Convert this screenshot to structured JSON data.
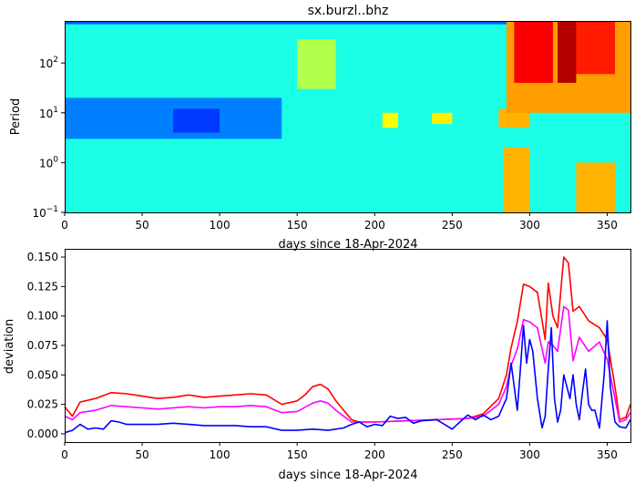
{
  "chart_data": [
    {
      "type": "heatmap",
      "title": "sx.burzl..bhz",
      "xlabel": "days since 18-Apr-2024",
      "ylabel": "Period",
      "xlim": [
        0,
        365
      ],
      "ylim": [
        0.1,
        700
      ],
      "yscale": "log",
      "x_ticks": [
        0,
        50,
        100,
        150,
        200,
        250,
        300,
        350
      ],
      "y_ticks": [
        {
          "value": 0.1,
          "base": "10",
          "exp": "−1"
        },
        {
          "value": 1,
          "base": "10",
          "exp": "0"
        },
        {
          "value": 10,
          "base": "10",
          "exp": "1"
        },
        {
          "value": 100,
          "base": "10",
          "exp": "2"
        }
      ],
      "colormap": "jet",
      "regions": [
        {
          "x": [
            0,
            365
          ],
          "period": [
            0.1,
            700
          ],
          "level": 0.4
        },
        {
          "x": [
            0,
            140
          ],
          "period": [
            3,
            20
          ],
          "level": 0.25
        },
        {
          "x": [
            70,
            100
          ],
          "period": [
            4,
            12
          ],
          "level": 0.18
        },
        {
          "x": [
            0,
            300
          ],
          "period": [
            600,
            700
          ],
          "level": 0.22
        },
        {
          "x": [
            150,
            175
          ],
          "period": [
            30,
            300
          ],
          "level": 0.55
        },
        {
          "x": [
            205,
            215
          ],
          "period": [
            5,
            10
          ],
          "level": 0.62
        },
        {
          "x": [
            237,
            250
          ],
          "period": [
            6,
            10
          ],
          "level": 0.64
        },
        {
          "x": [
            280,
            300
          ],
          "period": [
            5,
            12
          ],
          "level": 0.7
        },
        {
          "x": [
            285,
            365
          ],
          "period": [
            10,
            700
          ],
          "level": 0.72
        },
        {
          "x": [
            290,
            315
          ],
          "period": [
            40,
            700
          ],
          "level": 0.88
        },
        {
          "x": [
            318,
            330
          ],
          "period": [
            40,
            700
          ],
          "level": 0.95
        },
        {
          "x": [
            330,
            355
          ],
          "period": [
            60,
            700
          ],
          "level": 0.85
        },
        {
          "x": [
            283,
            300
          ],
          "period": [
            0.1,
            2
          ],
          "level": 0.7
        },
        {
          "x": [
            330,
            355
          ],
          "period": [
            0.1,
            1
          ],
          "level": 0.7
        }
      ]
    },
    {
      "type": "line",
      "xlabel": "days since 18-Apr-2024",
      "ylabel": "deviation",
      "xlim": [
        0,
        365
      ],
      "ylim": [
        -0.007,
        0.157
      ],
      "x_ticks": [
        0,
        50,
        100,
        150,
        200,
        250,
        300,
        350
      ],
      "y_ticks": [
        "0.000",
        "0.025",
        "0.050",
        "0.075",
        "0.100",
        "0.125",
        "0.150"
      ],
      "series": [
        {
          "color": "#ff0000",
          "x": [
            0,
            5,
            10,
            20,
            30,
            40,
            50,
            60,
            70,
            80,
            90,
            100,
            110,
            120,
            130,
            140,
            150,
            155,
            160,
            165,
            170,
            175,
            180,
            185,
            190,
            200,
            220,
            240,
            260,
            270,
            280,
            285,
            288,
            292,
            296,
            300,
            305,
            310,
            312,
            315,
            318,
            322,
            325,
            328,
            332,
            338,
            345,
            350,
            355,
            358,
            362,
            365
          ],
          "values": [
            0.023,
            0.015,
            0.027,
            0.03,
            0.035,
            0.034,
            0.032,
            0.03,
            0.031,
            0.033,
            0.031,
            0.032,
            0.033,
            0.034,
            0.033,
            0.025,
            0.028,
            0.033,
            0.04,
            0.042,
            0.038,
            0.028,
            0.02,
            0.012,
            0.01,
            0.01,
            0.011,
            0.012,
            0.013,
            0.017,
            0.03,
            0.05,
            0.073,
            0.095,
            0.127,
            0.125,
            0.12,
            0.08,
            0.128,
            0.1,
            0.09,
            0.15,
            0.145,
            0.104,
            0.108,
            0.096,
            0.09,
            0.08,
            0.04,
            0.012,
            0.014,
            0.025
          ]
        },
        {
          "color": "#ff00ff",
          "x": [
            0,
            5,
            10,
            20,
            30,
            40,
            50,
            60,
            70,
            80,
            90,
            100,
            110,
            120,
            130,
            140,
            150,
            160,
            165,
            170,
            175,
            180,
            185,
            190,
            200,
            220,
            240,
            260,
            270,
            280,
            285,
            288,
            292,
            296,
            300,
            305,
            310,
            312,
            315,
            318,
            322,
            325,
            328,
            332,
            338,
            345,
            350,
            355,
            358,
            362,
            365
          ],
          "values": [
            0.015,
            0.012,
            0.018,
            0.02,
            0.024,
            0.023,
            0.022,
            0.021,
            0.022,
            0.023,
            0.022,
            0.023,
            0.023,
            0.024,
            0.023,
            0.018,
            0.019,
            0.026,
            0.028,
            0.026,
            0.02,
            0.015,
            0.01,
            0.01,
            0.01,
            0.011,
            0.012,
            0.013,
            0.015,
            0.025,
            0.04,
            0.058,
            0.072,
            0.097,
            0.095,
            0.09,
            0.06,
            0.078,
            0.075,
            0.07,
            0.108,
            0.105,
            0.062,
            0.082,
            0.07,
            0.078,
            0.063,
            0.03,
            0.01,
            0.012,
            0.018
          ]
        },
        {
          "color": "#0000ff",
          "x": [
            0,
            5,
            10,
            15,
            20,
            25,
            30,
            35,
            40,
            50,
            60,
            70,
            80,
            90,
            100,
            110,
            120,
            130,
            140,
            150,
            160,
            170,
            180,
            185,
            190,
            195,
            200,
            205,
            210,
            215,
            220,
            225,
            230,
            240,
            245,
            250,
            255,
            260,
            265,
            270,
            275,
            280,
            285,
            288,
            290,
            292,
            294,
            296,
            298,
            300,
            302,
            305,
            308,
            310,
            312,
            314,
            316,
            318,
            320,
            322,
            324,
            326,
            328,
            330,
            332,
            334,
            336,
            338,
            340,
            342,
            345,
            348,
            350,
            352,
            355,
            358,
            362,
            365
          ],
          "values": [
            0.001,
            0.003,
            0.008,
            0.004,
            0.005,
            0.004,
            0.011,
            0.01,
            0.008,
            0.008,
            0.008,
            0.009,
            0.008,
            0.007,
            0.007,
            0.007,
            0.006,
            0.006,
            0.003,
            0.003,
            0.004,
            0.003,
            0.005,
            0.008,
            0.01,
            0.006,
            0.008,
            0.007,
            0.015,
            0.013,
            0.014,
            0.009,
            0.011,
            0.012,
            0.008,
            0.004,
            0.01,
            0.016,
            0.012,
            0.016,
            0.012,
            0.015,
            0.03,
            0.06,
            0.04,
            0.02,
            0.055,
            0.092,
            0.06,
            0.08,
            0.07,
            0.03,
            0.005,
            0.015,
            0.055,
            0.09,
            0.03,
            0.01,
            0.02,
            0.05,
            0.04,
            0.03,
            0.05,
            0.025,
            0.012,
            0.035,
            0.055,
            0.025,
            0.02,
            0.02,
            0.005,
            0.05,
            0.096,
            0.04,
            0.01,
            0.006,
            0.005,
            0.012
          ]
        }
      ]
    }
  ]
}
